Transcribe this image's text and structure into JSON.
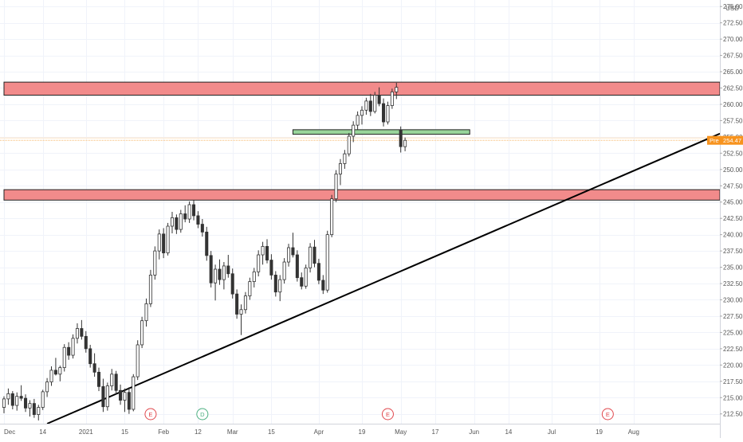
{
  "chart_data": {
    "type": "candlestick",
    "currency": "USD",
    "price_badge": {
      "label": "Pre",
      "value": "254.47",
      "color": "#f7931e"
    },
    "y_axis": {
      "ylim": [
        211.0,
        276.0
      ],
      "ticks": [
        "275.00",
        "272.50",
        "270.00",
        "267.50",
        "265.00",
        "262.50",
        "260.00",
        "257.50",
        "255.00",
        "252.50",
        "250.00",
        "247.50",
        "245.00",
        "242.50",
        "240.00",
        "237.50",
        "235.00",
        "232.50",
        "230.00",
        "227.50",
        "225.00",
        "222.50",
        "220.00",
        "217.50",
        "215.00",
        "212.50"
      ],
      "tick_values": [
        275,
        272.5,
        270,
        267.5,
        265,
        262.5,
        260,
        257.5,
        255,
        252.5,
        250,
        247.5,
        245,
        242.5,
        240,
        237.5,
        235,
        232.5,
        230,
        227.5,
        225,
        222.5,
        220,
        217.5,
        215,
        212.5
      ]
    },
    "x_axis": {
      "ticks": [
        {
          "label": "Dec",
          "pos": 0
        },
        {
          "label": "14",
          "pos": 9
        },
        {
          "label": "2021",
          "pos": 19
        },
        {
          "label": "15",
          "pos": 28
        },
        {
          "label": "Feb",
          "pos": 37
        },
        {
          "label": "12",
          "pos": 45
        },
        {
          "label": "Mar",
          "pos": 53
        },
        {
          "label": "15",
          "pos": 62
        },
        {
          "label": "Apr",
          "pos": 73
        },
        {
          "label": "19",
          "pos": 83
        },
        {
          "label": "May",
          "pos": 92
        },
        {
          "label": "17",
          "pos": 100
        },
        {
          "label": "Jun",
          "pos": 109
        },
        {
          "label": "14",
          "pos": 117
        },
        {
          "label": "Jul",
          "pos": 127
        },
        {
          "label": "19",
          "pos": 138
        },
        {
          "label": "Aug",
          "pos": 146
        }
      ],
      "xlim": [
        0,
        166
      ]
    },
    "event_markers": [
      {
        "label": "E",
        "pos": 34,
        "color": "#e0474c"
      },
      {
        "label": "D",
        "pos": 46,
        "color": "#4caf80"
      },
      {
        "label": "E",
        "pos": 89,
        "color": "#e0474c"
      },
      {
        "label": "E",
        "pos": 140,
        "color": "#e0474c"
      }
    ],
    "zones": [
      {
        "name": "resistance-zone-upper",
        "y_low": 261.4,
        "y_high": 263.4,
        "x_start": 0,
        "x_end": 166,
        "fill": "#f28b8b",
        "stroke": "#222222"
      },
      {
        "name": "resistance-zone-lower",
        "y_low": 245.3,
        "y_high": 246.9,
        "x_start": 0,
        "x_end": 166,
        "fill": "#f28b8b",
        "stroke": "#222222"
      },
      {
        "name": "support-zone-green",
        "y_low": 255.4,
        "y_high": 256.1,
        "x_start": 67,
        "x_end": 108,
        "fill": "#98d49a",
        "stroke": "#222222"
      }
    ],
    "trendline": {
      "x1": 10,
      "y1": 211.0,
      "x2": 166,
      "y2": 255.5,
      "color": "#000000"
    },
    "price_line": {
      "value": 254.47,
      "color": "#f7b96b"
    },
    "ohlc": [
      [
        213.5,
        215.2,
        212.6,
        214.8
      ],
      [
        214.8,
        216.4,
        213.9,
        215.6
      ],
      [
        215.6,
        216.0,
        213.2,
        213.8
      ],
      [
        213.8,
        215.8,
        213.0,
        215.2
      ],
      [
        215.2,
        216.9,
        214.5,
        214.9
      ],
      [
        214.9,
        215.5,
        212.8,
        213.4
      ],
      [
        213.4,
        214.6,
        212.1,
        214.1
      ],
      [
        214.1,
        214.8,
        211.9,
        212.4
      ],
      [
        212.4,
        213.9,
        211.5,
        213.5
      ],
      [
        213.5,
        216.2,
        213.1,
        215.9
      ],
      [
        215.9,
        218.0,
        215.1,
        217.4
      ],
      [
        217.4,
        219.8,
        216.8,
        219.2
      ],
      [
        219.2,
        221.1,
        218.4,
        218.6
      ],
      [
        218.6,
        219.9,
        217.5,
        219.6
      ],
      [
        219.6,
        223.2,
        219.0,
        222.7
      ],
      [
        222.7,
        223.5,
        220.8,
        221.5
      ],
      [
        221.5,
        224.7,
        221.0,
        224.1
      ],
      [
        224.1,
        226.4,
        223.3,
        225.6
      ],
      [
        225.6,
        226.9,
        223.9,
        224.4
      ],
      [
        224.4,
        225.2,
        221.9,
        222.5
      ],
      [
        222.5,
        223.1,
        219.6,
        220.2
      ],
      [
        220.2,
        221.8,
        218.2,
        218.9
      ],
      [
        218.9,
        219.6,
        216.0,
        216.7
      ],
      [
        216.7,
        217.9,
        212.8,
        213.6
      ],
      [
        213.6,
        217.3,
        213.0,
        216.8
      ],
      [
        216.8,
        219.4,
        216.1,
        218.6
      ],
      [
        218.6,
        219.1,
        215.5,
        216.1
      ],
      [
        216.1,
        217.0,
        213.9,
        214.6
      ],
      [
        214.6,
        216.4,
        212.8,
        215.8
      ],
      [
        215.8,
        216.6,
        212.5,
        213.2
      ],
      [
        213.2,
        218.6,
        212.9,
        218.2
      ],
      [
        218.2,
        223.8,
        217.7,
        223.1
      ],
      [
        223.1,
        227.4,
        222.6,
        226.8
      ],
      [
        226.8,
        230.2,
        225.9,
        229.4
      ],
      [
        229.4,
        234.6,
        228.9,
        233.8
      ],
      [
        233.8,
        238.2,
        233.1,
        237.5
      ],
      [
        237.5,
        240.8,
        236.2,
        240.1
      ],
      [
        240.1,
        241.0,
        236.4,
        237.2
      ],
      [
        237.2,
        241.8,
        236.8,
        241.3
      ],
      [
        241.3,
        243.5,
        240.2,
        242.6
      ],
      [
        242.6,
        243.1,
        240.1,
        240.8
      ],
      [
        240.8,
        243.8,
        240.3,
        243.2
      ],
      [
        243.2,
        244.5,
        241.9,
        242.4
      ],
      [
        242.4,
        245.1,
        241.8,
        244.6
      ],
      [
        244.6,
        245.3,
        242.2,
        242.9
      ],
      [
        242.9,
        243.6,
        241.0,
        241.6
      ],
      [
        241.6,
        242.4,
        239.7,
        240.4
      ],
      [
        240.4,
        241.2,
        236.0,
        236.8
      ],
      [
        236.8,
        237.5,
        231.9,
        232.6
      ],
      [
        232.6,
        235.4,
        229.9,
        234.7
      ],
      [
        234.7,
        236.2,
        232.3,
        233.1
      ],
      [
        233.1,
        235.8,
        231.6,
        235.2
      ],
      [
        235.2,
        236.9,
        233.4,
        234.0
      ],
      [
        234.0,
        234.8,
        230.2,
        230.9
      ],
      [
        230.9,
        231.6,
        227.1,
        227.8
      ],
      [
        227.8,
        229.3,
        224.6,
        228.5
      ],
      [
        228.5,
        231.2,
        227.9,
        230.6
      ],
      [
        230.6,
        233.4,
        230.0,
        232.8
      ],
      [
        232.8,
        234.9,
        231.9,
        234.3
      ],
      [
        234.3,
        237.6,
        233.6,
        236.9
      ],
      [
        236.9,
        238.9,
        235.4,
        238.2
      ],
      [
        238.2,
        239.3,
        235.6,
        236.1
      ],
      [
        236.1,
        237.0,
        233.1,
        233.8
      ],
      [
        233.8,
        234.4,
        230.5,
        231.2
      ],
      [
        231.2,
        233.8,
        229.8,
        233.1
      ],
      [
        233.1,
        236.4,
        232.5,
        235.8
      ],
      [
        235.8,
        238.6,
        235.1,
        238.0
      ],
      [
        238.0,
        240.3,
        236.5,
        236.9
      ],
      [
        236.9,
        237.6,
        232.8,
        233.4
      ],
      [
        233.4,
        234.2,
        231.6,
        232.1
      ],
      [
        232.1,
        235.4,
        231.7,
        234.9
      ],
      [
        234.9,
        238.7,
        234.2,
        238.1
      ],
      [
        238.1,
        239.2,
        235.0,
        235.6
      ],
      [
        235.6,
        236.3,
        232.4,
        233.0
      ],
      [
        233.0,
        233.8,
        230.9,
        231.5
      ],
      [
        231.5,
        240.6,
        231.1,
        240.0
      ],
      [
        240.0,
        246.1,
        239.6,
        245.5
      ],
      [
        245.5,
        249.9,
        245.0,
        249.3
      ],
      [
        249.3,
        251.6,
        247.6,
        250.9
      ],
      [
        250.9,
        253.0,
        250.1,
        252.4
      ],
      [
        252.4,
        255.6,
        252.0,
        255.1
      ],
      [
        255.1,
        257.4,
        254.2,
        256.8
      ],
      [
        256.8,
        258.9,
        256.1,
        258.3
      ],
      [
        258.3,
        259.7,
        256.9,
        259.1
      ],
      [
        259.1,
        261.0,
        258.4,
        260.5
      ],
      [
        260.5,
        261.6,
        258.2,
        258.9
      ],
      [
        258.9,
        261.9,
        258.6,
        261.4
      ],
      [
        261.4,
        262.6,
        259.7,
        260.1
      ],
      [
        260.1,
        260.9,
        256.6,
        257.3
      ],
      [
        257.3,
        260.4,
        256.9,
        259.8
      ],
      [
        259.8,
        262.4,
        259.3,
        261.9
      ],
      [
        261.9,
        263.3,
        260.8,
        262.6
      ],
      [
        256.1,
        256.6,
        252.6,
        253.5
      ],
      [
        253.5,
        254.9,
        252.8,
        254.47
      ]
    ]
  }
}
